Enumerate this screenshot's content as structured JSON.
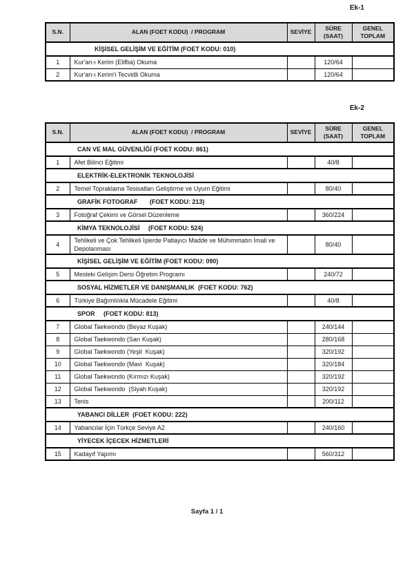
{
  "colors": {
    "page_bg": "#ffffff",
    "header_bg": "#d9d9d9",
    "border": "#000000",
    "text": "#1a1a1a"
  },
  "footer": {
    "page_label": "Sayfa 1 / 1"
  },
  "tables": [
    {
      "label": "Ek-1",
      "columns": [
        "S.N.",
        "ALAN (FOET KODU)  / PROGRAM",
        "SEVİYE",
        "SÜRE (SAAT)",
        "GENEL TOPLAM"
      ],
      "rows": [
        {
          "type": "section",
          "text": "KİŞİSEL GELİŞİM VE EĞİTİM (FOET KODU: 010)"
        },
        {
          "type": "data",
          "sn": "1",
          "program": "Kur'an-ı Kerim (Elifba) Okuma",
          "seviye": "",
          "sure": "120/64",
          "genel": ""
        },
        {
          "type": "data",
          "sn": "2",
          "program": "Kur'an-ı Kerim'i Tecvidli Okuma",
          "seviye": "",
          "sure": "120/64",
          "genel": ""
        }
      ]
    },
    {
      "label": "Ek-2",
      "columns": [
        "S.N.",
        "ALAN (FOET KODU)  / PROGRAM",
        "SEVİYE",
        "SÜRE (SAAT)",
        "GENEL TOPLAM"
      ],
      "rows": [
        {
          "type": "section",
          "text": "CAN VE MAL GÜVENLİĞİ (FOET KODU: 861)"
        },
        {
          "type": "data",
          "sn": "1",
          "program": "Afet Bilinci Eğitimi",
          "seviye": "",
          "sure": "40/8",
          "genel": ""
        },
        {
          "type": "section",
          "text": "ELEKTRİK-ELEKTRONİK TEKNOLOJİSİ"
        },
        {
          "type": "data",
          "sn": "2",
          "program": "Temel Topraklama Tesisatları Geliştirme ve Uyum Eğitimi",
          "seviye": "",
          "sure": "80/40",
          "genel": ""
        },
        {
          "type": "section",
          "text": "GRAFİK FOTOGRAF       (FOET KODU: 213)"
        },
        {
          "type": "data",
          "sn": "3",
          "program": "Fotoğraf Çekimi ve Görsel Düzenleme",
          "seviye": "",
          "sure": "360/224",
          "genel": ""
        },
        {
          "type": "section",
          "text": "KİMYA TEKNOLOJİSİ     (FOET KODU: 524)"
        },
        {
          "type": "data",
          "sn": "4",
          "program": "Tehlikeli ve Çok Tehlikeli İşlerde Patlayıcı Madde ve Mühimmatın İmali ve Depolanması",
          "seviye": "",
          "sure": "80/40",
          "genel": ""
        },
        {
          "type": "section",
          "text": "KİŞİSEL GELİŞİM VE EĞİTİM (FOET KODU: 090)"
        },
        {
          "type": "data",
          "sn": "5",
          "program": "Mesleki Gelişim Dersi Öğretim Programı",
          "seviye": "",
          "sure": "240/72",
          "genel": ""
        },
        {
          "type": "section",
          "text": "SOSYAL HİZMETLER VE DANIŞMANLIK  (FOET KODU: 762)"
        },
        {
          "type": "data",
          "sn": "6",
          "program": "Türkiye Bağımlılıkla Mücadele Eğitimi",
          "seviye": "",
          "sure": "40/8",
          "genel": ""
        },
        {
          "type": "section",
          "text": "SPOR     (FOET KODU: 813)"
        },
        {
          "type": "data",
          "sn": "7",
          "program": "Global Taekwondo (Beyaz Kuşak)",
          "seviye": "",
          "sure": "240/144",
          "genel": ""
        },
        {
          "type": "data",
          "sn": "8",
          "program": "Global Taekwondo (Sarı Kuşak)",
          "seviye": "",
          "sure": "280/168",
          "genel": ""
        },
        {
          "type": "data",
          "sn": "9",
          "program": "Global Taekwondo (Yeşil  Kuşak)",
          "seviye": "",
          "sure": "320/192",
          "genel": ""
        },
        {
          "type": "data",
          "sn": "10",
          "program": "Global Taekwondo (Mavi  Kuşak)",
          "seviye": "",
          "sure": "320/184",
          "genel": ""
        },
        {
          "type": "data",
          "sn": "11",
          "program": "Global Taekwondo (Kırmızı Kuşak)",
          "seviye": "",
          "sure": "320/192",
          "genel": ""
        },
        {
          "type": "data",
          "sn": "12",
          "program": "Global Taekwondo  (Siyah Kuşak)",
          "seviye": "",
          "sure": "320/192",
          "genel": ""
        },
        {
          "type": "data",
          "sn": "13",
          "program": "Tenis",
          "seviye": "",
          "sure": "200/112",
          "genel": ""
        },
        {
          "type": "section",
          "text": "YABANCI DİLLER  (FOET KODU: 222)"
        },
        {
          "type": "data",
          "sn": "14",
          "program": "Yabancılar İçin Türkçe Seviye A2",
          "seviye": "",
          "sure": "240/160",
          "genel": ""
        },
        {
          "type": "section",
          "text": "YİYECEK İÇECEK HİZMETLERİ"
        },
        {
          "type": "data",
          "sn": "15",
          "program": "Kadayıf Yapımı",
          "seviye": "",
          "sure": "560/312",
          "genel": ""
        }
      ]
    }
  ]
}
